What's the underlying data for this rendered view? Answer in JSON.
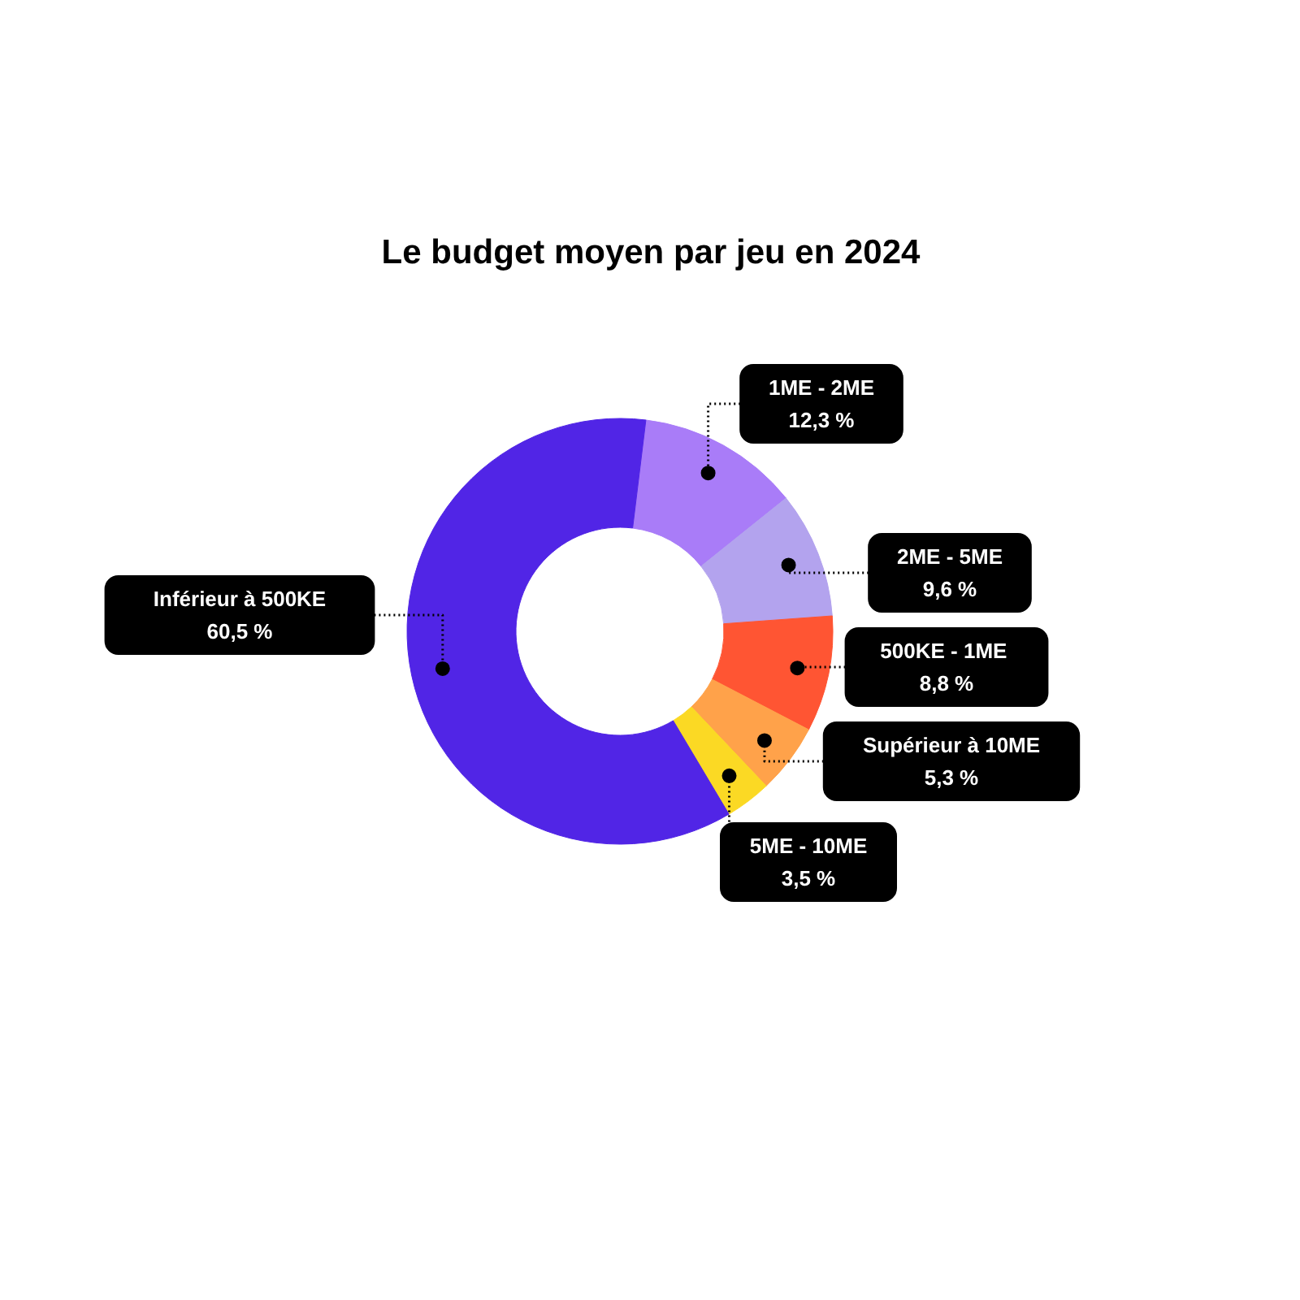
{
  "chart_data": {
    "type": "donut",
    "title": "Le budget moyen par jeu en 2024",
    "categories": [
      "1ME - 2ME",
      "2ME - 5ME",
      "500KE  - 1ME",
      "Supérieur à 10ME",
      "5ME - 10ME",
      "Inférieur à 500KE"
    ],
    "values": [
      12.3,
      9.6,
      8.8,
      5.3,
      3.5,
      60.5
    ],
    "colors": [
      "#a97cf8",
      "#b3a3ee",
      "#ff5533",
      "#ffa24a",
      "#fbd924",
      "#5125e6"
    ],
    "value_labels": [
      "12,3 %",
      "9,6 %",
      "8,8 %",
      "5,3 %",
      "3,5 %",
      "60,5 %"
    ]
  }
}
